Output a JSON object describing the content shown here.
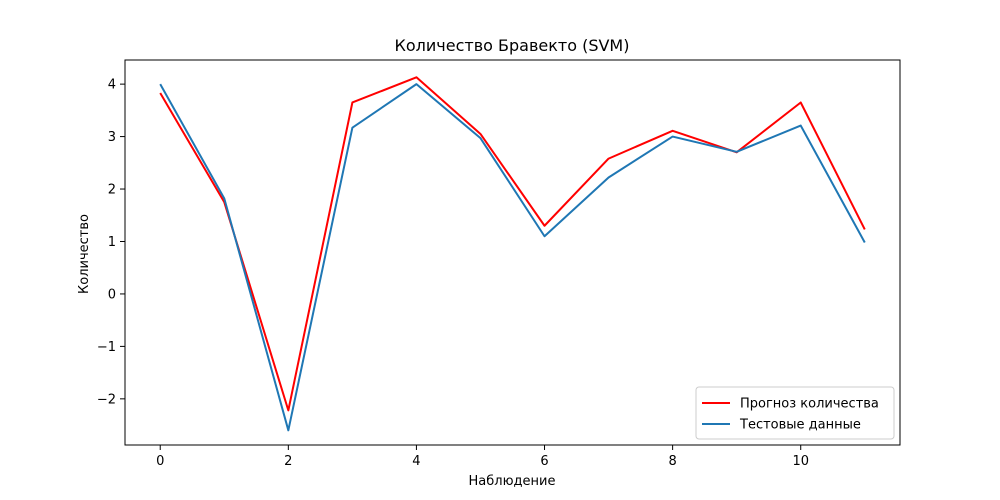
{
  "chart_data": {
    "type": "line",
    "title": "Количество Бравекто (SVM)",
    "xlabel": "Наблюдение",
    "ylabel": "Количество",
    "x": [
      0,
      1,
      2,
      3,
      4,
      5,
      6,
      7,
      8,
      9,
      10,
      11
    ],
    "xlim": [
      -0.55,
      11.55
    ],
    "ylim": [
      -2.88,
      4.46
    ],
    "xticks": [
      0,
      2,
      4,
      6,
      8,
      10
    ],
    "yticks": [
      -2,
      -1,
      0,
      1,
      2,
      3,
      4
    ],
    "ytick_labels": [
      "−2",
      "−1",
      "0",
      "1",
      "2",
      "3",
      "4"
    ],
    "grid": false,
    "legend_position": "lower-right",
    "series": [
      {
        "name": "Прогноз количества",
        "color": "#ff0000",
        "values": [
          3.83,
          1.75,
          -2.22,
          3.65,
          4.13,
          3.05,
          1.3,
          2.58,
          3.11,
          2.7,
          3.65,
          1.23
        ]
      },
      {
        "name": "Тестовые данные",
        "color": "#1f77b4",
        "values": [
          4.0,
          1.82,
          -2.6,
          3.17,
          4.0,
          2.97,
          1.1,
          2.22,
          3.0,
          2.71,
          3.21,
          0.98
        ]
      }
    ]
  }
}
